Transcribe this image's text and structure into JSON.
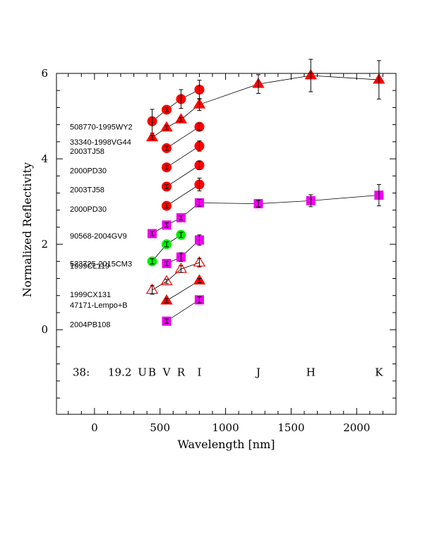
{
  "chart_data": {
    "type": "scatter",
    "xlabel": "Wavelength [nm]",
    "ylabel": "Normalized Reflectivity",
    "xlim": [
      -290,
      2300
    ],
    "ylim": [
      -1.98,
      6.0
    ],
    "x_ticks": [
      "0",
      "500",
      "1000",
      "1500",
      "2000"
    ],
    "y_ticks": [
      "0",
      "2",
      "4",
      "6"
    ],
    "annotation_left": "38:",
    "annotation_mag": "19.2",
    "band_labels": [
      {
        "text": "U",
        "x": 365
      },
      {
        "text": "B",
        "x": 440
      },
      {
        "text": "V",
        "x": 550
      },
      {
        "text": "R",
        "x": 660
      },
      {
        "text": "I",
        "x": 800
      },
      {
        "text": "J",
        "x": 1250
      },
      {
        "text": "H",
        "x": 1650
      },
      {
        "text": "K",
        "x": 2170
      }
    ],
    "series": [
      {
        "label": "508770-1995WY2",
        "label_y": 4.75,
        "marker": "circle",
        "color": "#ff0000",
        "fill": true,
        "points": [
          {
            "x": 440,
            "y": 4.88,
            "err": 0.28
          },
          {
            "x": 550,
            "y": 5.15,
            "err": 0.05
          },
          {
            "x": 660,
            "y": 5.4,
            "err": 0.22
          },
          {
            "x": 800,
            "y": 5.62,
            "err": 0.22
          }
        ]
      },
      {
        "label": "33340-1998VG44",
        "label_y": 4.4,
        "marker": "triangle",
        "color": "#ff0000",
        "fill": true,
        "points": [
          {
            "x": 440,
            "y": 4.5,
            "err": 0.05
          },
          {
            "x": 550,
            "y": 4.73,
            "err": 0.05
          },
          {
            "x": 660,
            "y": 4.92,
            "err": 0.05
          },
          {
            "x": 800,
            "y": 5.27,
            "err": 0.14
          },
          {
            "x": 1250,
            "y": 5.75,
            "err": 0.22
          },
          {
            "x": 1650,
            "y": 5.95,
            "err": 0.38
          },
          {
            "x": 2170,
            "y": 5.85,
            "err": 0.45
          }
        ]
      },
      {
        "label": "2003TJ58",
        "label_y": 4.18,
        "marker": "circle",
        "color": "#ff0000",
        "fill": true,
        "points": [
          {
            "x": 550,
            "y": 4.25,
            "err": 0.05
          },
          {
            "x": 800,
            "y": 4.75,
            "err": 0.08
          }
        ]
      },
      {
        "label": "2000PD30",
        "label_y": 3.73,
        "marker": "circle",
        "color": "#ff0000",
        "fill": true,
        "points": [
          {
            "x": 550,
            "y": 3.8,
            "err": 0.05
          },
          {
            "x": 800,
            "y": 4.3,
            "err": 0.12
          }
        ]
      },
      {
        "label": "2003TJ58",
        "label_y": 3.28,
        "marker": "circle",
        "color": "#ff0000",
        "fill": true,
        "points": [
          {
            "x": 550,
            "y": 3.35,
            "err": 0.05
          },
          {
            "x": 800,
            "y": 3.85,
            "err": 0.1
          }
        ]
      },
      {
        "label": "2000PD30",
        "label_y": 2.83,
        "marker": "circle",
        "color": "#ff0000",
        "fill": true,
        "points": [
          {
            "x": 550,
            "y": 2.9,
            "err": 0.05
          },
          {
            "x": 800,
            "y": 3.4,
            "err": 0.15
          }
        ]
      },
      {
        "label": "90568-2004GV9",
        "label_y": 2.2,
        "marker": "square",
        "color": "#ee00ee",
        "fill": true,
        "points": [
          {
            "x": 440,
            "y": 2.25,
            "err": 0.05
          },
          {
            "x": 550,
            "y": 2.45,
            "err": 0.05
          },
          {
            "x": 660,
            "y": 2.62,
            "err": 0.05
          },
          {
            "x": 800,
            "y": 2.97,
            "err": 0.08
          },
          {
            "x": 1250,
            "y": 2.95,
            "err": 0.08
          },
          {
            "x": 1650,
            "y": 3.02,
            "err": 0.14
          },
          {
            "x": 2170,
            "y": 3.15,
            "err": 0.25
          }
        ]
      },
      {
        "label": "523725-2015CM3",
        "label_y": 1.55,
        "marker": "circle",
        "color": "#00ee00",
        "fill": true,
        "points": [
          {
            "x": 440,
            "y": 1.6,
            "err": 0.06
          },
          {
            "x": 550,
            "y": 2.0,
            "err": 0.06
          },
          {
            "x": 660,
            "y": 2.22,
            "err": 0.06
          }
        ]
      },
      {
        "label": "1999CL119",
        "label_y": 1.5,
        "marker": "square",
        "color": "#ee00ee",
        "fill": true,
        "points": [
          {
            "x": 550,
            "y": 1.55,
            "err": 0.05
          },
          {
            "x": 660,
            "y": 1.7,
            "err": 0.1
          },
          {
            "x": 800,
            "y": 2.1,
            "err": 0.12
          }
        ]
      },
      {
        "label": "1999CX131",
        "label_y": 0.83,
        "marker": "triangle",
        "color": "#ff0000",
        "fill": false,
        "points": [
          {
            "x": 440,
            "y": 0.93,
            "err": 0.1
          },
          {
            "x": 550,
            "y": 1.13,
            "err": 0.05
          },
          {
            "x": 660,
            "y": 1.42,
            "err": 0.08
          },
          {
            "x": 800,
            "y": 1.57,
            "err": 0.1
          }
        ]
      },
      {
        "label": "47171-Lempo+B",
        "label_y": 0.58,
        "marker": "triangle",
        "color": "#ff0000",
        "fill": true,
        "points": [
          {
            "x": 550,
            "y": 0.68,
            "err": 0.05
          },
          {
            "x": 800,
            "y": 1.15,
            "err": 0.05
          }
        ]
      },
      {
        "label": "2004PB108",
        "label_y": 0.13,
        "marker": "square",
        "color": "#ee00ee",
        "fill": true,
        "points": [
          {
            "x": 550,
            "y": 0.2,
            "err": 0.05
          },
          {
            "x": 800,
            "y": 0.7,
            "err": 0.07
          }
        ]
      }
    ]
  }
}
